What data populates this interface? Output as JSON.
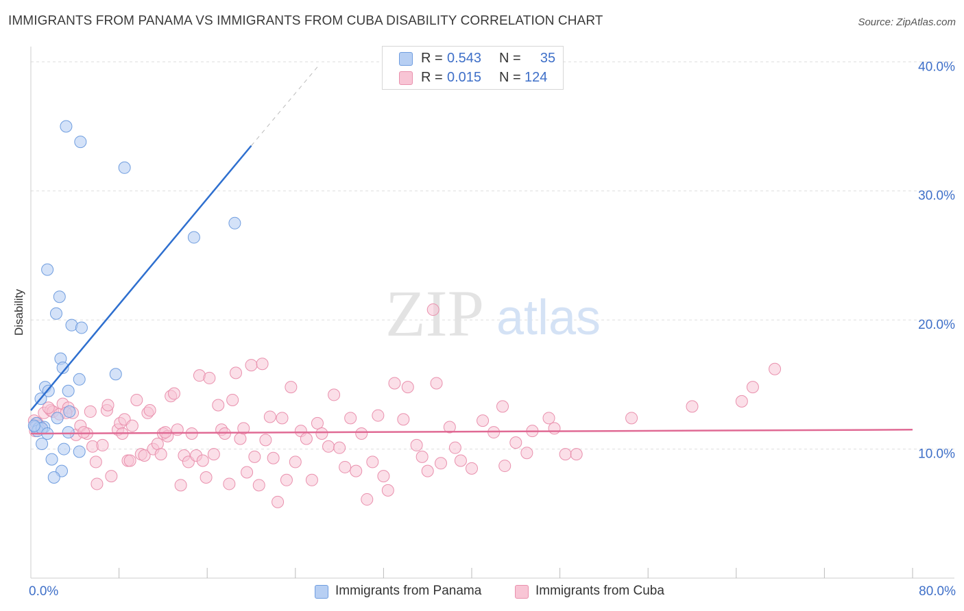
{
  "title": "IMMIGRANTS FROM PANAMA VS IMMIGRANTS FROM CUBA DISABILITY CORRELATION CHART",
  "source": "Source: ZipAtlas.com",
  "watermark": {
    "zip": "ZIP",
    "atlas": "atlas"
  },
  "colors": {
    "panama_fill": "#b7cff3",
    "panama_stroke": "#6f9ddf",
    "panama_line": "#2e6fcf",
    "cuba_fill": "#f8c5d5",
    "cuba_stroke": "#e990ad",
    "cuba_line": "#e06a94",
    "tick_text": "#3e6fc8",
    "grid": "#dddddd"
  },
  "stats": [
    {
      "r_label": "R =",
      "r_value": "0.543",
      "n_label": "N =",
      "n_value": "35"
    },
    {
      "r_label": "R =",
      "r_value": "0.015",
      "n_label": "N =",
      "n_value": "124"
    }
  ],
  "legend": [
    {
      "label": "Immigrants from Panama"
    },
    {
      "label": "Immigrants from Cuba"
    }
  ],
  "x_tick_labels": {
    "min": "0.0%",
    "max": "80.0%"
  },
  "chart_data": {
    "type": "scatter",
    "xlabel": "",
    "ylabel": "Disability",
    "xlim": [
      0,
      80
    ],
    "ylim": [
      0,
      41.5
    ],
    "y_ticks": [
      {
        "value": 10,
        "label": "10.0%"
      },
      {
        "value": 20,
        "label": "20.0%"
      },
      {
        "value": 30,
        "label": "30.0%"
      },
      {
        "value": 40,
        "label": "40.0%"
      }
    ],
    "x_minor_ticks": [
      8,
      16,
      24,
      32,
      40,
      48,
      56,
      64,
      72,
      80
    ],
    "series": [
      {
        "name": "Immigrants from Panama",
        "r": 0.543,
        "n": 35,
        "trend": {
          "x0": 0.0,
          "y0": 13.0,
          "x1": 20.0,
          "y1": 33.5,
          "dash_to_x": 26.0,
          "dash_to_y": 39.6
        },
        "points": [
          [
            3.2,
            35.0
          ],
          [
            4.5,
            33.8
          ],
          [
            8.5,
            31.8
          ],
          [
            18.5,
            27.5
          ],
          [
            14.8,
            26.4
          ],
          [
            1.5,
            23.9
          ],
          [
            2.6,
            21.8
          ],
          [
            2.3,
            20.5
          ],
          [
            3.7,
            19.6
          ],
          [
            4.6,
            19.4
          ],
          [
            2.7,
            17.0
          ],
          [
            2.9,
            16.3
          ],
          [
            7.7,
            15.8
          ],
          [
            4.4,
            15.4
          ],
          [
            1.3,
            14.8
          ],
          [
            1.6,
            14.5
          ],
          [
            3.4,
            14.5
          ],
          [
            0.9,
            13.9
          ],
          [
            3.5,
            12.9
          ],
          [
            2.4,
            12.4
          ],
          [
            0.5,
            12.0
          ],
          [
            0.4,
            11.7
          ],
          [
            0.7,
            11.6
          ],
          [
            1.2,
            11.7
          ],
          [
            0.6,
            11.4
          ],
          [
            1.0,
            11.6
          ],
          [
            0.3,
            11.8
          ],
          [
            1.5,
            11.2
          ],
          [
            3.4,
            11.3
          ],
          [
            1.0,
            10.4
          ],
          [
            3.0,
            10.0
          ],
          [
            4.4,
            9.8
          ],
          [
            1.9,
            9.2
          ],
          [
            2.8,
            8.3
          ],
          [
            2.1,
            7.8
          ]
        ]
      },
      {
        "name": "Immigrants from Cuba",
        "r": 0.015,
        "n": 124,
        "trend": {
          "x0": 0.0,
          "y0": 11.2,
          "x1": 80.0,
          "y1": 11.5
        },
        "points": [
          [
            0.3,
            12.2
          ],
          [
            0.5,
            11.6
          ],
          [
            0.4,
            11.4
          ],
          [
            0.6,
            12.0
          ],
          [
            0.8,
            11.8
          ],
          [
            1.2,
            12.8
          ],
          [
            1.8,
            13.0
          ],
          [
            2.0,
            12.9
          ],
          [
            2.6,
            12.7
          ],
          [
            1.6,
            13.2
          ],
          [
            2.9,
            13.5
          ],
          [
            3.4,
            13.2
          ],
          [
            3.8,
            12.8
          ],
          [
            4.1,
            11.1
          ],
          [
            4.5,
            11.8
          ],
          [
            5.1,
            11.2
          ],
          [
            4.8,
            11.3
          ],
          [
            5.4,
            12.9
          ],
          [
            5.6,
            10.2
          ],
          [
            5.9,
            9.0
          ],
          [
            6.0,
            7.3
          ],
          [
            6.5,
            10.3
          ],
          [
            6.9,
            13.0
          ],
          [
            7.0,
            13.4
          ],
          [
            7.3,
            7.9
          ],
          [
            7.9,
            11.5
          ],
          [
            8.1,
            12.0
          ],
          [
            8.3,
            11.2
          ],
          [
            8.5,
            12.3
          ],
          [
            8.8,
            9.1
          ],
          [
            9.2,
            11.8
          ],
          [
            9.6,
            13.8
          ],
          [
            10.0,
            9.6
          ],
          [
            10.3,
            9.5
          ],
          [
            10.6,
            12.8
          ],
          [
            10.8,
            13.0
          ],
          [
            11.1,
            10.0
          ],
          [
            11.5,
            10.4
          ],
          [
            11.8,
            9.6
          ],
          [
            12.0,
            11.2
          ],
          [
            12.4,
            11.0
          ],
          [
            12.7,
            14.1
          ],
          [
            13.0,
            14.3
          ],
          [
            13.3,
            11.5
          ],
          [
            13.6,
            7.2
          ],
          [
            13.9,
            9.5
          ],
          [
            14.3,
            9.0
          ],
          [
            14.6,
            11.2
          ],
          [
            15.0,
            9.5
          ],
          [
            15.3,
            15.7
          ],
          [
            15.6,
            9.1
          ],
          [
            15.9,
            7.8
          ],
          [
            16.2,
            15.5
          ],
          [
            16.6,
            9.6
          ],
          [
            17.0,
            13.4
          ],
          [
            17.3,
            11.5
          ],
          [
            17.6,
            11.2
          ],
          [
            18.0,
            7.3
          ],
          [
            18.3,
            13.8
          ],
          [
            18.6,
            15.9
          ],
          [
            19.0,
            10.8
          ],
          [
            19.3,
            11.6
          ],
          [
            19.6,
            8.2
          ],
          [
            20.0,
            16.5
          ],
          [
            20.3,
            9.4
          ],
          [
            20.7,
            7.2
          ],
          [
            21.0,
            16.6
          ],
          [
            21.3,
            10.7
          ],
          [
            21.7,
            12.5
          ],
          [
            22.0,
            9.3
          ],
          [
            22.4,
            5.9
          ],
          [
            22.8,
            12.4
          ],
          [
            23.2,
            7.6
          ],
          [
            23.6,
            14.8
          ],
          [
            24.0,
            9.0
          ],
          [
            24.5,
            11.4
          ],
          [
            25.0,
            10.8
          ],
          [
            25.5,
            7.6
          ],
          [
            26.0,
            12.0
          ],
          [
            26.4,
            11.2
          ],
          [
            27.0,
            10.2
          ],
          [
            27.5,
            14.2
          ],
          [
            28.0,
            10.1
          ],
          [
            28.5,
            8.6
          ],
          [
            29.0,
            12.4
          ],
          [
            29.5,
            8.3
          ],
          [
            30.0,
            11.2
          ],
          [
            30.5,
            6.1
          ],
          [
            31.0,
            9.0
          ],
          [
            31.5,
            12.6
          ],
          [
            32.0,
            7.9
          ],
          [
            32.4,
            6.8
          ],
          [
            33.0,
            15.1
          ],
          [
            33.8,
            12.3
          ],
          [
            34.2,
            14.8
          ],
          [
            35.0,
            10.3
          ],
          [
            35.5,
            9.4
          ],
          [
            36.0,
            8.3
          ],
          [
            36.8,
            15.1
          ],
          [
            37.2,
            8.9
          ],
          [
            38.0,
            11.7
          ],
          [
            38.5,
            10.1
          ],
          [
            39.0,
            9.1
          ],
          [
            40.0,
            8.5
          ],
          [
            41.0,
            12.2
          ],
          [
            42.0,
            11.3
          ],
          [
            42.8,
            13.3
          ],
          [
            43.0,
            8.7
          ],
          [
            44.0,
            10.5
          ],
          [
            45.0,
            9.7
          ],
          [
            45.5,
            11.4
          ],
          [
            47.0,
            12.4
          ],
          [
            47.5,
            11.6
          ],
          [
            48.5,
            9.6
          ],
          [
            49.5,
            9.6
          ],
          [
            54.5,
            12.4
          ],
          [
            60.0,
            13.3
          ],
          [
            64.5,
            13.7
          ],
          [
            65.5,
            14.8
          ],
          [
            67.5,
            16.2
          ],
          [
            36.5,
            20.8
          ],
          [
            12.2,
            11.3
          ],
          [
            9.0,
            9.1
          ],
          [
            3.2,
            12.8
          ]
        ]
      }
    ]
  }
}
